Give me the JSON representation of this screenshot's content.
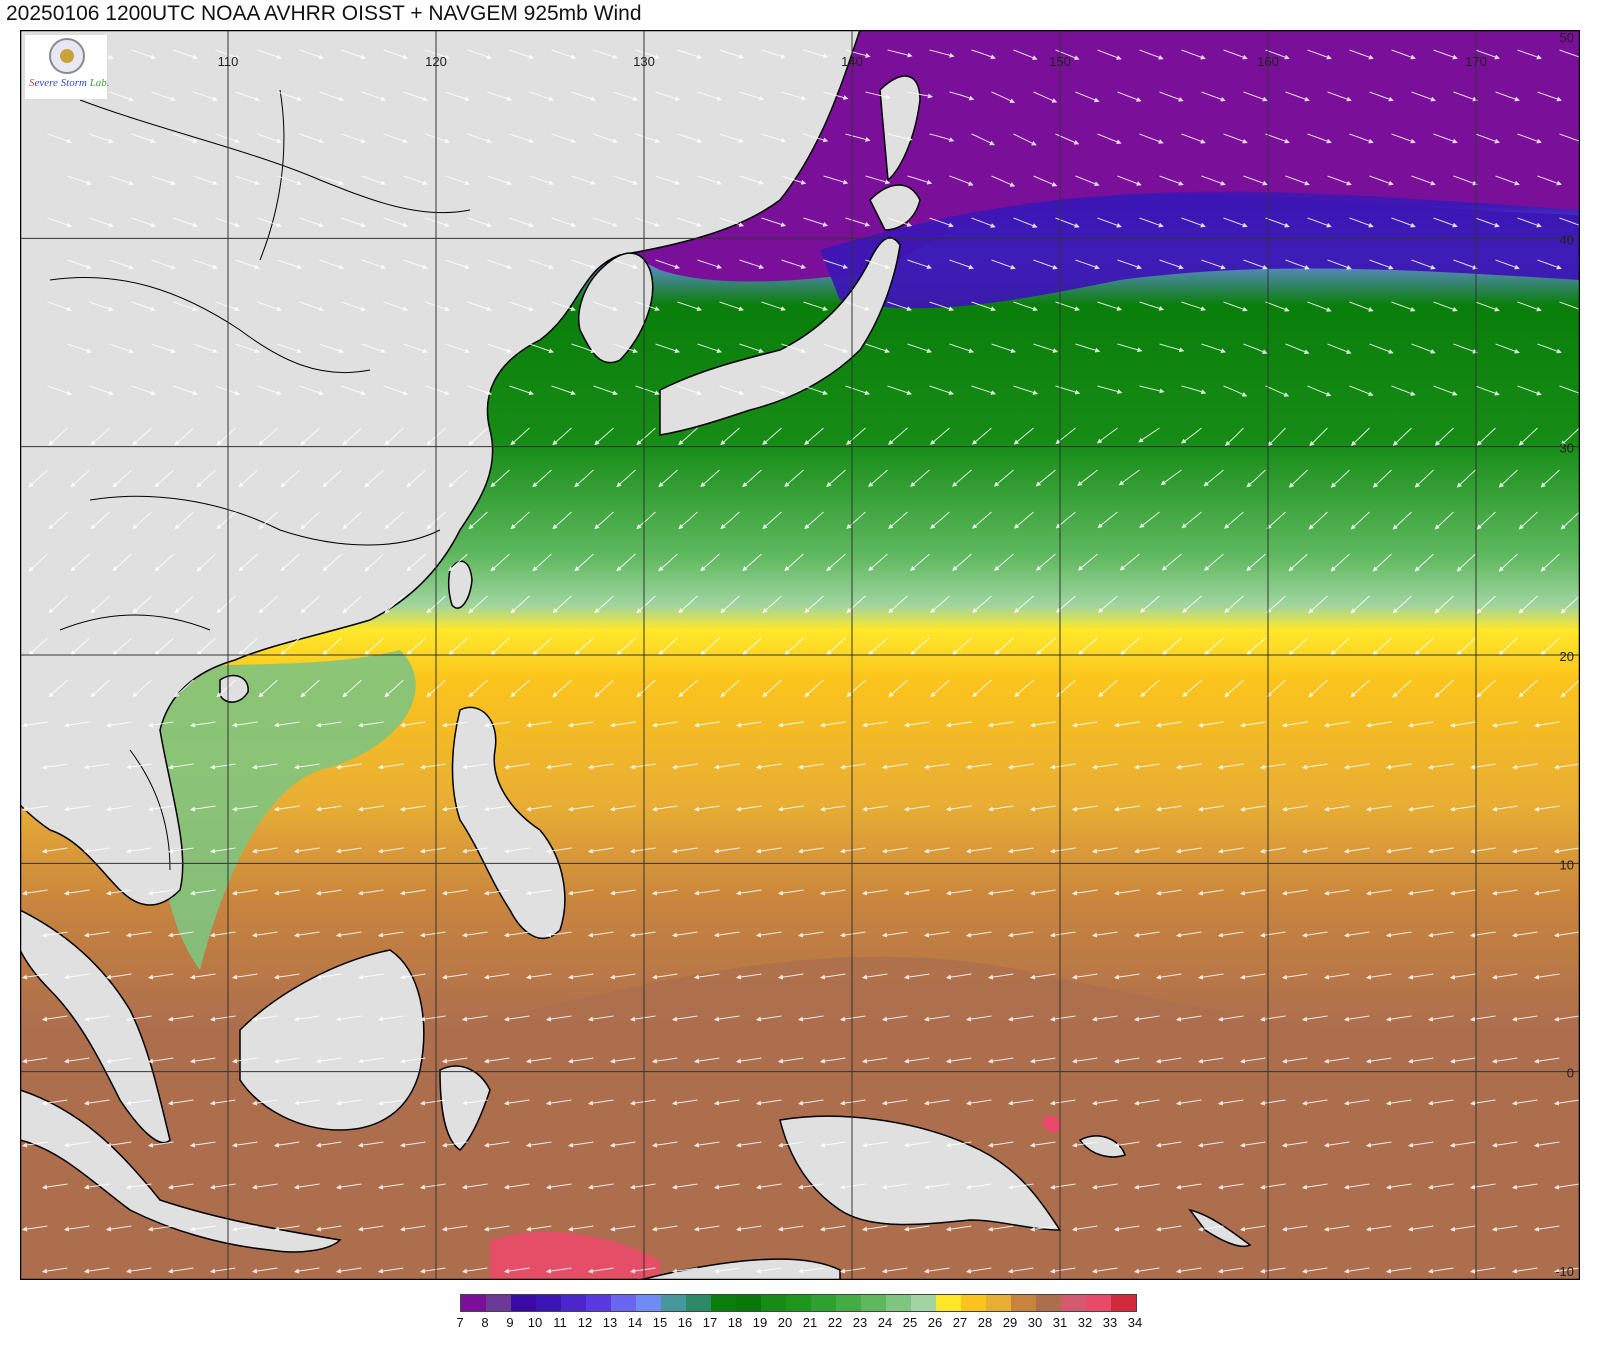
{
  "title": "20250106 1200UTC NOAA AVHRR OISST + NAVGEM 925mb Wind",
  "logo": {
    "text": "Severe Storm Lab."
  },
  "map": {
    "lon_range": [
      100,
      175
    ],
    "lat_range": [
      -10,
      50
    ],
    "lon_labels": [
      "110",
      "120",
      "130",
      "140",
      "150",
      "160",
      "170"
    ],
    "lat_labels": [
      "50",
      "40",
      "30",
      "20",
      "10",
      "0",
      "-10"
    ],
    "land_color": "#e0e0e0",
    "grid_color": "#333333"
  },
  "legend": {
    "labels": [
      "7",
      "8",
      "9",
      "10",
      "11",
      "12",
      "13",
      "14",
      "15",
      "16",
      "17",
      "18",
      "19",
      "20",
      "21",
      "22",
      "23",
      "24",
      "25",
      "26",
      "27",
      "28",
      "29",
      "30",
      "31",
      "32",
      "33",
      "34"
    ],
    "colors": [
      "#7a109a",
      "#6a3a96",
      "#3a0aa6",
      "#3c16b4",
      "#4a26cc",
      "#5a3ae0",
      "#6a66f2",
      "#6e8cf4",
      "#46989e",
      "#2c8a66",
      "#0a7e0a",
      "#08780a",
      "#168c16",
      "#1e961e",
      "#2fa12f",
      "#45ac45",
      "#5eb85e",
      "#7fc47f",
      "#a0d4a0",
      "#ffe82a",
      "#fbc41c",
      "#e8ad34",
      "#c8843e",
      "#ad6e4e",
      "#d45a70",
      "#ea4a6a",
      "#d02a3c"
    ]
  }
}
